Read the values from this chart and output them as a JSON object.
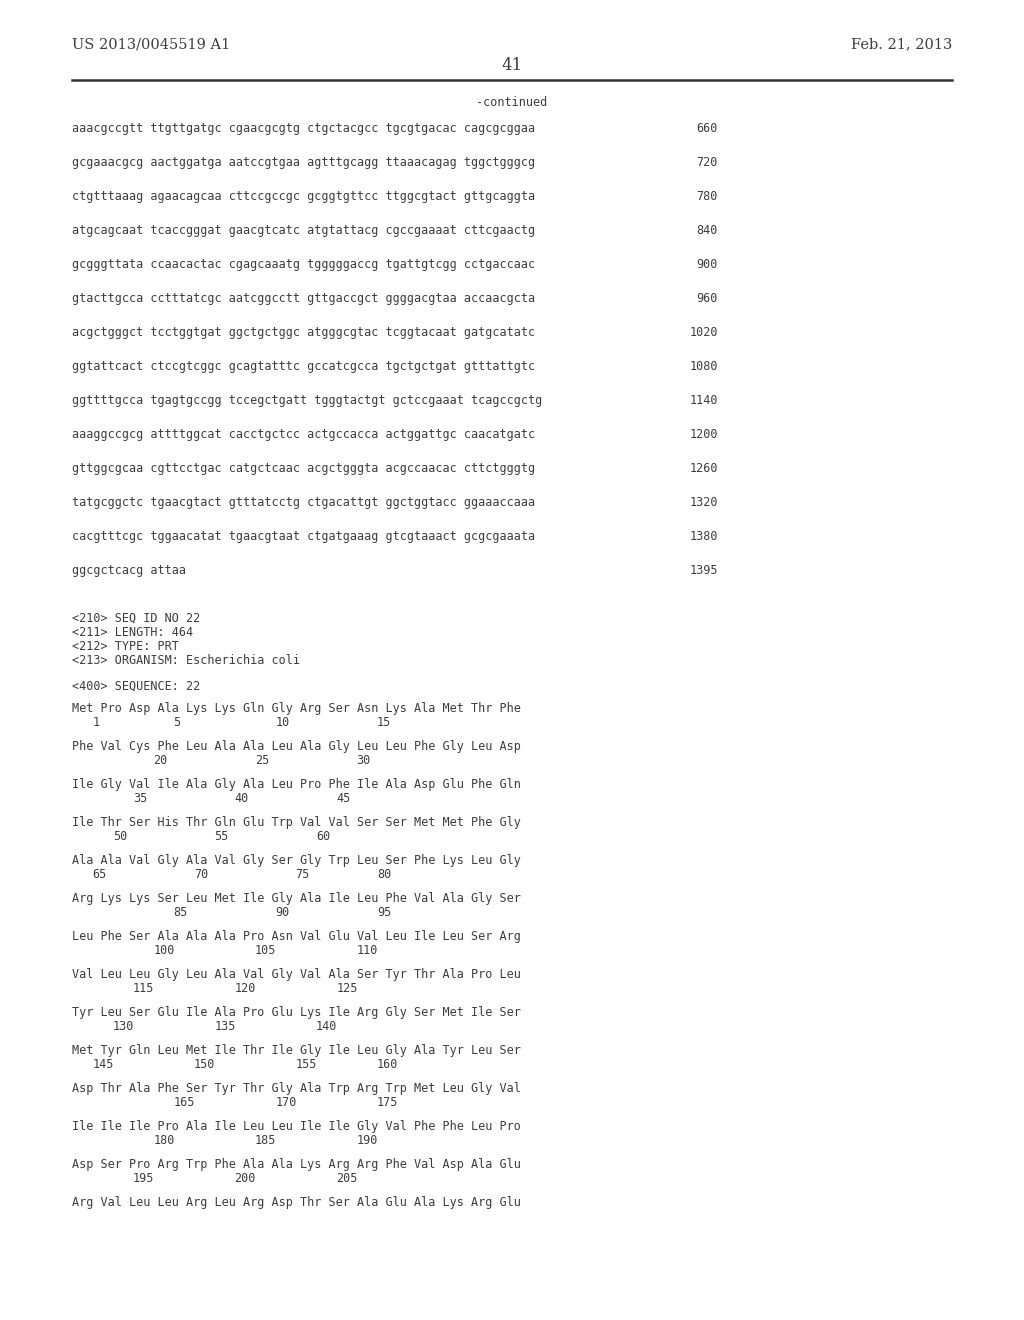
{
  "header_left": "US 2013/0045519 A1",
  "header_right": "Feb. 21, 2013",
  "page_number": "41",
  "continued_label": "-continued",
  "bg": "#ffffff",
  "tc": "#3d3d3d",
  "seq_lines": [
    [
      "aaacgccgtt ttgttgatgc cgaacgcgtg ctgctacgcc tgcgtgacac cagcgcggaa",
      "660"
    ],
    [
      "gcgaaacgcg aactggatga aatccgtgaa agtttgcagg ttaaacagag tggctgggcg",
      "720"
    ],
    [
      "ctgtttaaag agaacagcaa cttccgccgc gcggtgttcc ttggcgtact gttgcaggta",
      "780"
    ],
    [
      "atgcagcaat tcaccgggat gaacgtcatc atgtattacg cgccgaaaat cttcgaactg",
      "840"
    ],
    [
      "gcgggttata ccaacactac cgagcaaatg tgggggaccg tgattgtcgg cctgaccaac",
      "900"
    ],
    [
      "gtacttgcca cctttatcgc aatcggcctt gttgaccgct ggggacgtaa accaacgcta",
      "960"
    ],
    [
      "acgctgggct tcctggtgat ggctgctggc atgggcgtac tcggtacaat gatgcatatc",
      "1020"
    ],
    [
      "ggtattcact ctccgtcggc gcagtatttc gccatcgcca tgctgctgat gtttattgtc",
      "1080"
    ],
    [
      "ggttttgcca tgagtgccgg tccegctgatt tgggtactgt gctccgaaat tcagccgctg",
      "1140"
    ],
    [
      "aaaggccgcg attttggcat cacctgctcc actgccacca actggattgc caacatgatc",
      "1200"
    ],
    [
      "gttggcgcaa cgttcctgac catgctcaac acgctgggta acgccaacac cttctgggtg",
      "1260"
    ],
    [
      "tatgcggctc tgaacgtact gtttatcctg ctgacattgt ggctggtacc ggaaaccaaa",
      "1320"
    ],
    [
      "cacgtttcgc tggaacatat tgaacgtaat ctgatgaaag gtcgtaaact gcgcgaaata",
      "1380"
    ],
    [
      "ggcgctcacg attaa",
      "1395"
    ]
  ],
  "meta_lines": [
    "<210> SEQ ID NO 22",
    "<211> LENGTH: 464",
    "<212> TYPE: PRT",
    "<213> ORGANISM: Escherichia coli"
  ],
  "seq_label": "<400> SEQUENCE: 22",
  "prot_blocks": [
    {
      "aa": "Met Pro Asp Ala Lys Lys Gln Gly Arg Ser Asn Lys Ala Met Thr Phe",
      "nums": [
        [
          "1",
          "1"
        ],
        [
          "5",
          "5"
        ],
        [
          "10",
          "10"
        ],
        [
          "15",
          "15"
        ]
      ]
    },
    {
      "aa": "Phe Val Cys Phe Leu Ala Ala Leu Ala Gly Leu Leu Phe Gly Leu Asp",
      "nums": [
        [
          "20",
          "4"
        ],
        [
          "25",
          "9"
        ],
        [
          "30",
          "14"
        ]
      ]
    },
    {
      "aa": "Ile Gly Val Ile Ala Gly Ala Leu Pro Phe Ile Ala Asp Glu Phe Gln",
      "nums": [
        [
          "35",
          "3"
        ],
        [
          "40",
          "8"
        ],
        [
          "45",
          "13"
        ]
      ]
    },
    {
      "aa": "Ile Thr Ser His Thr Gln Glu Trp Val Val Ser Ser Met Met Phe Gly",
      "nums": [
        [
          "50",
          "2"
        ],
        [
          "55",
          "7"
        ],
        [
          "60",
          "12"
        ]
      ]
    },
    {
      "aa": "Ala Ala Val Gly Ala Val Gly Ser Gly Trp Leu Ser Phe Lys Leu Gly",
      "nums": [
        [
          "65",
          "1"
        ],
        [
          "70",
          "6"
        ],
        [
          "75",
          "11"
        ],
        [
          "80",
          "15"
        ]
      ]
    },
    {
      "aa": "Arg Lys Lys Ser Leu Met Ile Gly Ala Ile Leu Phe Val Ala Gly Ser",
      "nums": [
        [
          "85",
          "5"
        ],
        [
          "90",
          "10"
        ],
        [
          "95",
          "15"
        ]
      ]
    },
    {
      "aa": "Leu Phe Ser Ala Ala Ala Pro Asn Val Glu Val Leu Ile Leu Ser Arg",
      "nums": [
        [
          "100",
          "4"
        ],
        [
          "105",
          "9"
        ],
        [
          "110",
          "14"
        ]
      ]
    },
    {
      "aa": "Val Leu Leu Gly Leu Ala Val Gly Val Ala Ser Tyr Thr Ala Pro Leu",
      "nums": [
        [
          "115",
          "3"
        ],
        [
          "120",
          "8"
        ],
        [
          "125",
          "13"
        ]
      ]
    },
    {
      "aa": "Tyr Leu Ser Glu Ile Ala Pro Glu Lys Ile Arg Gly Ser Met Ile Ser",
      "nums": [
        [
          "130",
          "2"
        ],
        [
          "135",
          "7"
        ],
        [
          "140",
          "12"
        ]
      ]
    },
    {
      "aa": "Met Tyr Gln Leu Met Ile Thr Ile Gly Ile Leu Gly Ala Tyr Leu Ser",
      "nums": [
        [
          "145",
          "1"
        ],
        [
          "150",
          "6"
        ],
        [
          "155",
          "11"
        ],
        [
          "160",
          "15"
        ]
      ]
    },
    {
      "aa": "Asp Thr Ala Phe Ser Tyr Thr Gly Ala Trp Arg Trp Met Leu Gly Val",
      "nums": [
        [
          "165",
          "5"
        ],
        [
          "170",
          "10"
        ],
        [
          "175",
          "15"
        ]
      ]
    },
    {
      "aa": "Ile Ile Ile Pro Ala Ile Leu Leu Ile Ile Gly Val Phe Phe Leu Pro",
      "nums": [
        [
          "180",
          "4"
        ],
        [
          "185",
          "9"
        ],
        [
          "190",
          "14"
        ]
      ]
    },
    {
      "aa": "Asp Ser Pro Arg Trp Phe Ala Ala Lys Arg Arg Phe Val Asp Ala Glu",
      "nums": [
        [
          "195",
          "3"
        ],
        [
          "200",
          "8"
        ],
        [
          "205",
          "13"
        ]
      ]
    },
    {
      "aa": "Arg Val Leu Leu Arg Leu Arg Asp Thr Ser Ala Glu Ala Lys Arg Glu",
      "nums": []
    }
  ]
}
